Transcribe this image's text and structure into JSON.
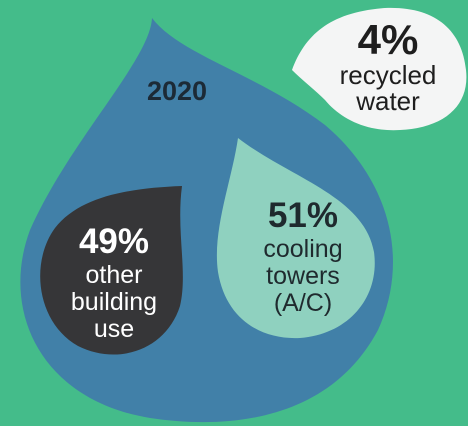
{
  "colors": {
    "background": "#44bc8a",
    "main_drop": "#4180a8",
    "other_drop": "#363638",
    "cooling_drop": "#8fd1bf",
    "recycled_bubble": "#f4f5f5"
  },
  "year": "2020",
  "segments": [
    {
      "percent": "49%",
      "lines": [
        "other",
        "building",
        "use"
      ],
      "value": 49
    },
    {
      "percent": "51%",
      "lines": [
        "cooling",
        "towers",
        "(A/C)"
      ],
      "value": 51
    }
  ],
  "recycled": {
    "percent": "4%",
    "lines": [
      "recycled",
      "water"
    ],
    "value": 4
  }
}
